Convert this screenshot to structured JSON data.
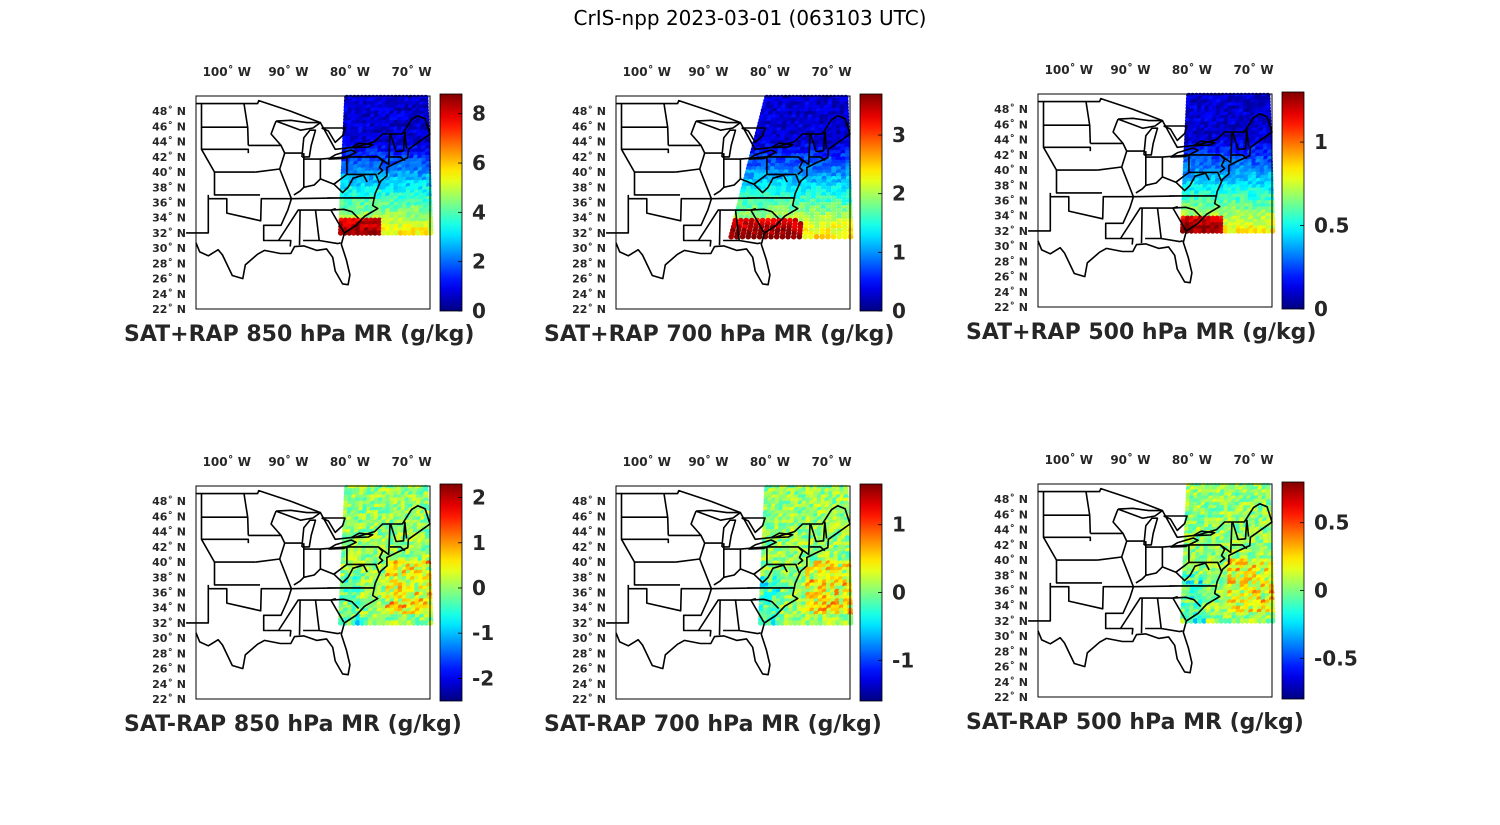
{
  "figure_title": "CrIS-npp 2023-03-01 (063103 UTC)",
  "lon_ticks": [
    "100˚ W",
    "90˚ W",
    "80˚ W",
    "70˚ W"
  ],
  "lat_ticks": [
    "48˚ N",
    "46˚ N",
    "44˚ N",
    "42˚ N",
    "40˚ N",
    "38˚ N",
    "36˚ N",
    "34˚ N",
    "32˚ N",
    "30˚ N",
    "28˚ N",
    "26˚ N",
    "24˚ N",
    "22˚ N"
  ],
  "colormap": "jet",
  "panels": [
    {
      "caption": "SAT+RAP 850 hPa MR (g/kg)",
      "colorbar": {
        "min": 0,
        "max": 8.8,
        "ticks": [
          "0",
          "2",
          "4",
          "6",
          "8"
        ],
        "tick_values": [
          0,
          2,
          4,
          6,
          8
        ]
      },
      "field": "total"
    },
    {
      "caption": "SAT+RAP 700 hPa MR (g/kg)",
      "colorbar": {
        "min": 0,
        "max": 3.7,
        "ticks": [
          "0",
          "1",
          "2",
          "3"
        ],
        "tick_values": [
          0,
          1,
          2,
          3
        ]
      },
      "field": "total"
    },
    {
      "caption": "SAT+RAP 500 hPa MR (g/kg)",
      "colorbar": {
        "min": 0,
        "max": 1.3,
        "ticks": [
          "0",
          "0.5",
          "1"
        ],
        "tick_values": [
          0,
          0.5,
          1
        ]
      },
      "field": "total"
    },
    {
      "caption": "SAT-RAP 850 hPa MR (g/kg)",
      "colorbar": {
        "min": -2.5,
        "max": 2.3,
        "ticks": [
          "-2",
          "-1",
          "0",
          "1",
          "2"
        ],
        "tick_values": [
          -2,
          -1,
          0,
          1,
          2
        ]
      },
      "field": "diff"
    },
    {
      "caption": "SAT-RAP 700 hPa MR (g/kg)",
      "colorbar": {
        "min": -1.6,
        "max": 1.6,
        "ticks": [
          "-1",
          "0",
          "1"
        ],
        "tick_values": [
          -1,
          0,
          1
        ]
      },
      "field": "diff"
    },
    {
      "caption": "SAT-RAP 500 hPa MR (g/kg)",
      "colorbar": {
        "min": -0.8,
        "max": 0.8,
        "ticks": [
          "-0.5",
          "0",
          "0.5"
        ],
        "tick_values": [
          -0.5,
          0,
          0.5
        ]
      },
      "field": "diff"
    }
  ]
}
